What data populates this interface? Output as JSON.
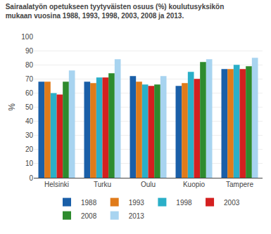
{
  "chart_data": {
    "type": "bar",
    "title": "Sairaalatyön opetukseen tyytyväisten osuus (%) koulutusyksikön\nmukaan vuosina 1988, 1993, 1998, 2003, 2008 ja 2013.",
    "ylabel": "%",
    "categories": [
      "Helsinki",
      "Turku",
      "Oulu",
      "Kuopio",
      "Tampere"
    ],
    "series": [
      {
        "name": "1988",
        "color": "#1a5fa8",
        "values": [
          68,
          68,
          72,
          65,
          77
        ]
      },
      {
        "name": "1993",
        "color": "#e07b1a",
        "values": [
          68,
          67,
          68,
          67,
          77
        ]
      },
      {
        "name": "1998",
        "color": "#2aafc8",
        "values": [
          60,
          71,
          66,
          75,
          80
        ]
      },
      {
        "name": "2003",
        "color": "#d42020",
        "values": [
          59,
          71,
          65,
          70,
          77
        ]
      },
      {
        "name": "2008",
        "color": "#2e8b2e",
        "values": [
          68,
          74,
          66,
          82,
          79
        ]
      },
      {
        "name": "2013",
        "color": "#a8d4f0",
        "values": [
          76,
          84,
          72,
          84,
          85
        ]
      }
    ],
    "ylim": [
      0,
      100
    ],
    "yticks": [
      0,
      10,
      20,
      30,
      40,
      50,
      60,
      70,
      80,
      90,
      100
    ],
    "grid": true,
    "legend": "bottom"
  }
}
